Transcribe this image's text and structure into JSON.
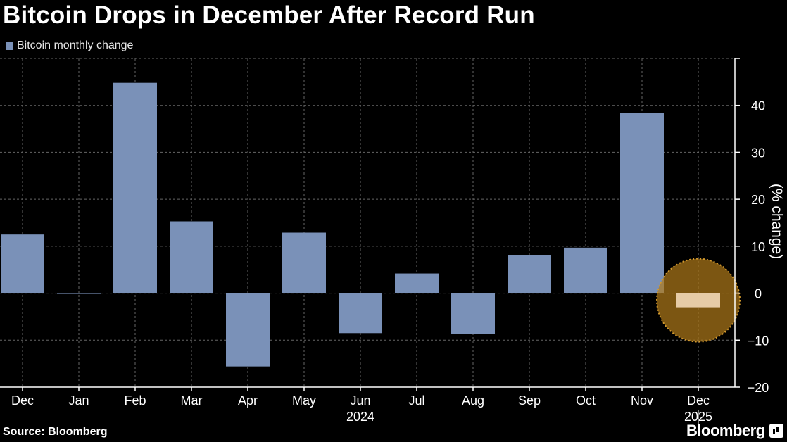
{
  "title": "Bitcoin Drops in December After Record Run",
  "source": "Source: Bloomberg",
  "brand": "Bloomberg",
  "legend": {
    "label": "Bitcoin monthly change",
    "color": "#7a91b8"
  },
  "colors": {
    "background": "#000000",
    "bar": "#7a91b8",
    "highlight_circle": "#b07a1a",
    "highlight_bar": "#e6cba6",
    "grid": "#666666"
  },
  "chart_data": {
    "type": "bar",
    "categories": [
      "Dec",
      "Jan",
      "Feb",
      "Mar",
      "Apr",
      "May",
      "Jun",
      "Jul",
      "Aug",
      "Sep",
      "Oct",
      "Nov",
      "Dec"
    ],
    "year_labels": [
      {
        "label": "2024",
        "category_index": 6
      },
      {
        "label": "2025",
        "category_index": 12
      }
    ],
    "series": [
      {
        "name": "Bitcoin monthly change",
        "values": [
          12.5,
          -0.1,
          44.8,
          15.3,
          -15.6,
          12.9,
          -8.5,
          4.2,
          -8.7,
          8.1,
          9.7,
          38.4,
          -3.0
        ]
      }
    ],
    "highlight_index": 12,
    "ylabel": "(% change)",
    "ylim": [
      -20,
      50
    ],
    "yticks": [
      -20,
      -10,
      0,
      10,
      20,
      30,
      40
    ],
    "y_axis_position": "right",
    "grid": true
  }
}
